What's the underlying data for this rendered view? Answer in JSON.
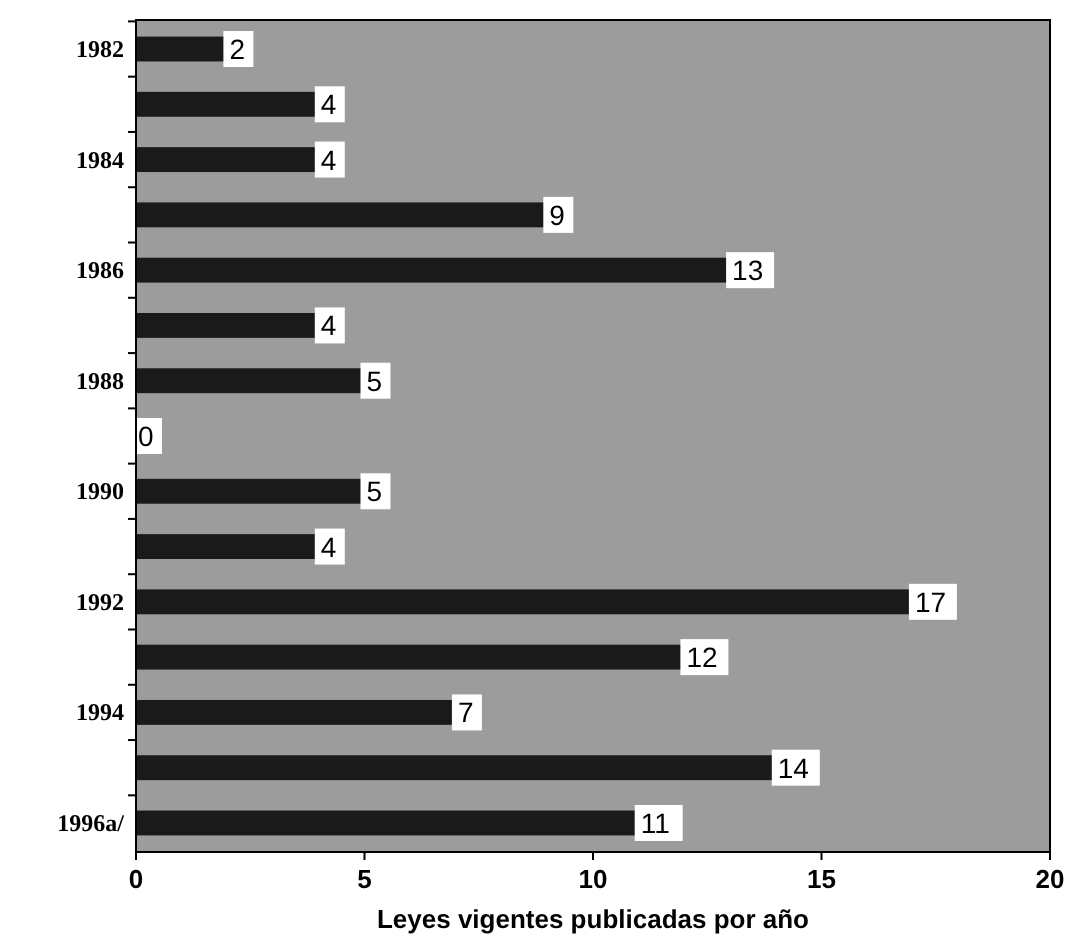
{
  "chart_data": {
    "type": "bar",
    "orientation": "horizontal",
    "xlabel": "Leyes vigentes publicadas por año",
    "categories": [
      "1982",
      null,
      "1984",
      null,
      "1986",
      null,
      "1988",
      null,
      "1990",
      null,
      "1992",
      null,
      "1994",
      null,
      "1996a/"
    ],
    "values": [
      2,
      4,
      4,
      9,
      13,
      4,
      5,
      0,
      5,
      4,
      17,
      12,
      7,
      14,
      11
    ],
    "color": "#1a1a1a",
    "xlim": [
      0,
      20
    ],
    "xticks": [
      0,
      5,
      10,
      15,
      20
    ],
    "data_labels": true,
    "grid": false
  }
}
